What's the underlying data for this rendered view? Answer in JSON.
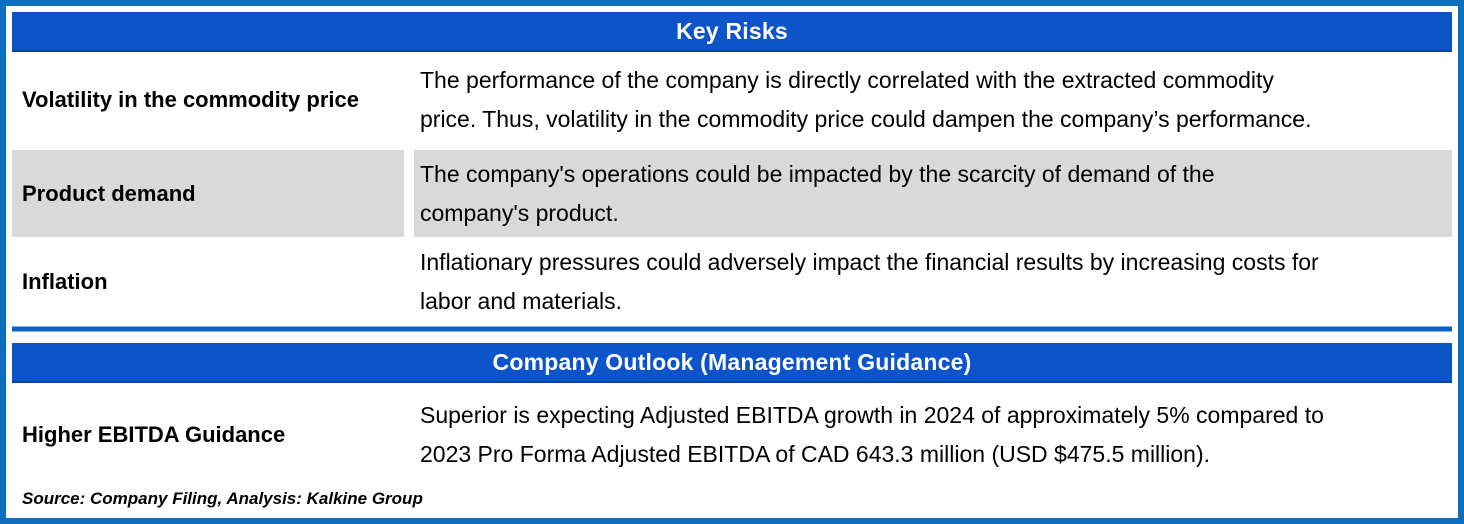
{
  "key_risks": {
    "title": "Key Risks",
    "rows": [
      {
        "label": "Volatility in the commodity price",
        "lines": [
          "The performance of the company is directly correlated with the extracted commodity",
          "price. Thus, volatility in the commodity price could dampen the company’s performance."
        ]
      },
      {
        "label": "Product demand",
        "lines": [
          "The company's operations could be impacted by the scarcity of demand of the",
          "company's product."
        ]
      },
      {
        "label": "Inflation",
        "lines": [
          "Inflationary pressures could adversely impact the financial results by increasing costs for",
          "labor and materials."
        ]
      }
    ]
  },
  "outlook": {
    "title": "Company Outlook (Management Guidance)",
    "rows": [
      {
        "label": "Higher EBITDA Guidance",
        "lines": [
          "Superior is expecting Adjusted EBITDA growth in 2024 of approximately 5% compared to",
          "2023 Pro Forma Adjusted EBITDA of CAD 643.3 million (USD $475.5 million)."
        ]
      }
    ]
  },
  "footer": {
    "source": "Source: Company Filing, Analysis: Kalkine Group"
  },
  "colors": {
    "header_blue": "#0D53C9",
    "frame_blue": "#0C6FBF",
    "divider_blue": "#0B62C4",
    "row_gray": "#D9D9D9"
  }
}
